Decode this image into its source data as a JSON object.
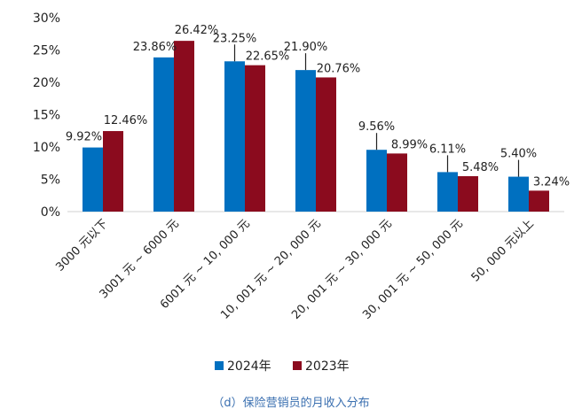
{
  "chart_data": {
    "type": "bar",
    "caption": "（d）保险营销员的月收入分布",
    "categories": [
      "3000 元以下",
      "3001 元 ~ 6000 元",
      "6001 元 ~ 10, 000 元",
      "10, 001 元 ~ 20, 000 元",
      "20, 001 元 ~ 30, 000 元",
      "30, 001 元 ~ 50, 000 元",
      "50, 000 元以上"
    ],
    "series": [
      {
        "name": "2024年",
        "color": "#0070c0",
        "values": [
          9.92,
          23.86,
          23.25,
          21.9,
          9.56,
          6.11,
          5.4
        ],
        "labels": [
          "9.92%",
          "23.86%",
          "23.25%",
          "21.90%",
          "9.56%",
          "6.11%",
          "5.40%"
        ]
      },
      {
        "name": "2023年",
        "color": "#8b0b1e",
        "values": [
          12.46,
          26.42,
          22.65,
          20.76,
          8.99,
          5.48,
          3.24
        ],
        "labels": [
          "12.46%",
          "26.42%",
          "22.65%",
          "20.76%",
          "8.99%",
          "5.48%",
          "3.24%"
        ]
      }
    ],
    "ylim": [
      0,
      30
    ],
    "yticks": [
      0,
      5,
      10,
      15,
      20,
      25,
      30
    ],
    "ytick_labels": [
      "0%",
      "5%",
      "10%",
      "15%",
      "20%",
      "25%",
      "30%"
    ],
    "legend_position": "bottom",
    "grid": false
  }
}
